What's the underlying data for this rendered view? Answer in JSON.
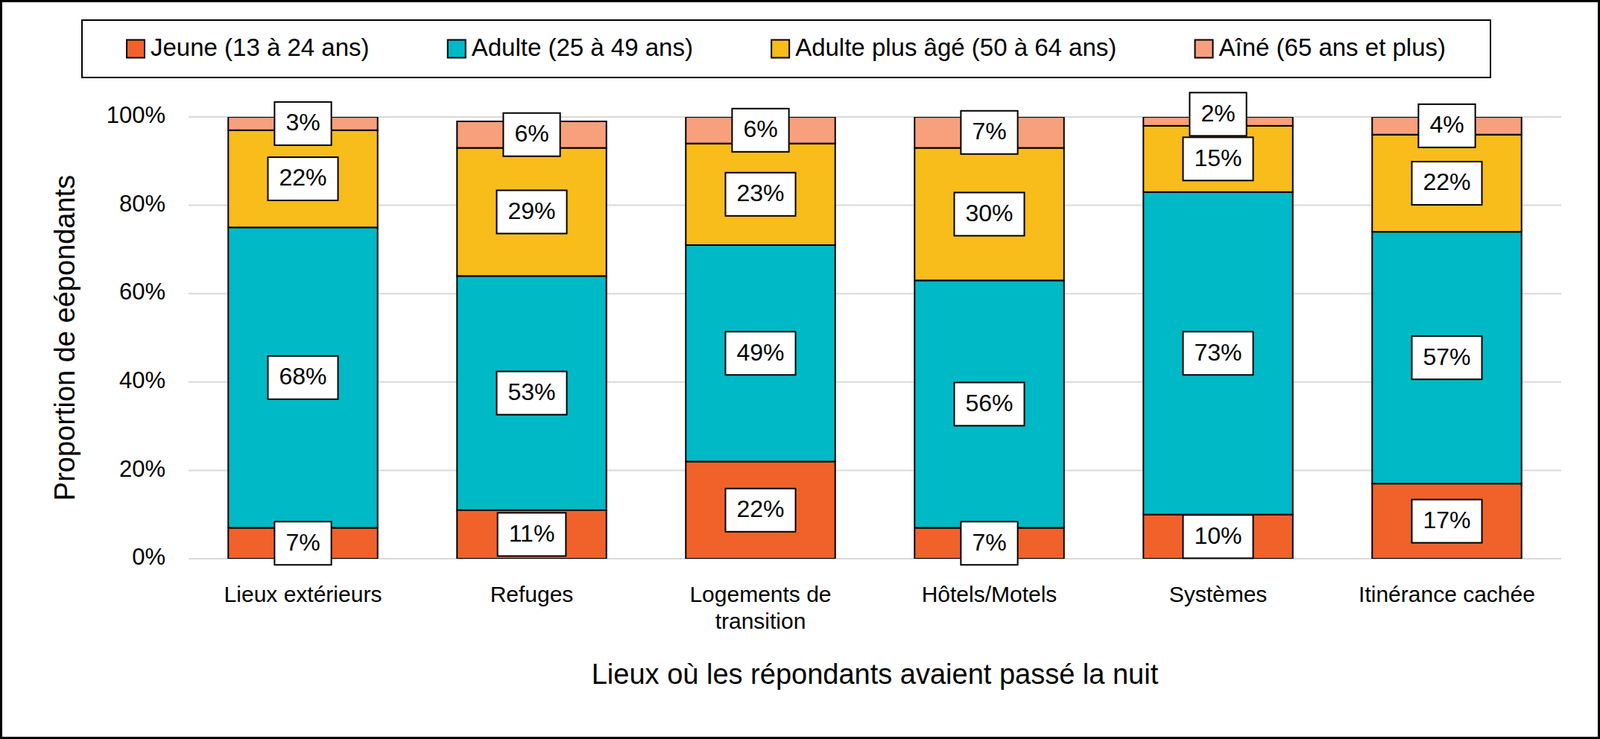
{
  "chart_data": {
    "type": "bar",
    "stacked": true,
    "data_labels": true,
    "grid": true,
    "legend": "top",
    "x_label": "Lieux où les répondants avaient passé la nuit",
    "y_label": "Proportion de eépondants",
    "categories": [
      "Lieux extérieurs",
      "Refuges",
      "Logements de transition",
      "Hôtels/Motels",
      "Systèmes",
      "Itinérance cachée"
    ],
    "ylim": [
      0,
      100
    ],
    "yticks": [
      {
        "value": 0,
        "label": "0%"
      },
      {
        "value": 20,
        "label": "20%"
      },
      {
        "value": 40,
        "label": "40%"
      },
      {
        "value": 60,
        "label": "60%"
      },
      {
        "value": 80,
        "label": "80%"
      },
      {
        "value": 100,
        "label": "100%"
      }
    ],
    "series": [
      {
        "name": "Jeune (13 à 24 ans)",
        "color": "#f0622a",
        "values": [
          7,
          11,
          22,
          7,
          10,
          17
        ],
        "value_labels": [
          "7%",
          "11%",
          "22%",
          "7%",
          "10%",
          "17%"
        ]
      },
      {
        "name": "Adulte (25 à 49 ans)",
        "color": "#00b9c6",
        "values": [
          68,
          53,
          49,
          56,
          73,
          57
        ],
        "value_labels": [
          "68%",
          "53%",
          "49%",
          "56%",
          "73%",
          "57%"
        ]
      },
      {
        "name": "Adulte plus âgé (50 à 64 ans)",
        "color": "#f8bc1b",
        "values": [
          22,
          29,
          23,
          30,
          15,
          22
        ],
        "value_labels": [
          "22%",
          "29%",
          "23%",
          "30%",
          "15%",
          "22%"
        ]
      },
      {
        "name": "Aîné (65 ans et plus)",
        "color": "#f8a07c",
        "values": [
          3,
          6,
          6,
          7,
          2,
          4
        ],
        "value_labels": [
          "3%",
          "6%",
          "6%",
          "7%",
          "2%",
          "4%"
        ]
      }
    ]
  }
}
